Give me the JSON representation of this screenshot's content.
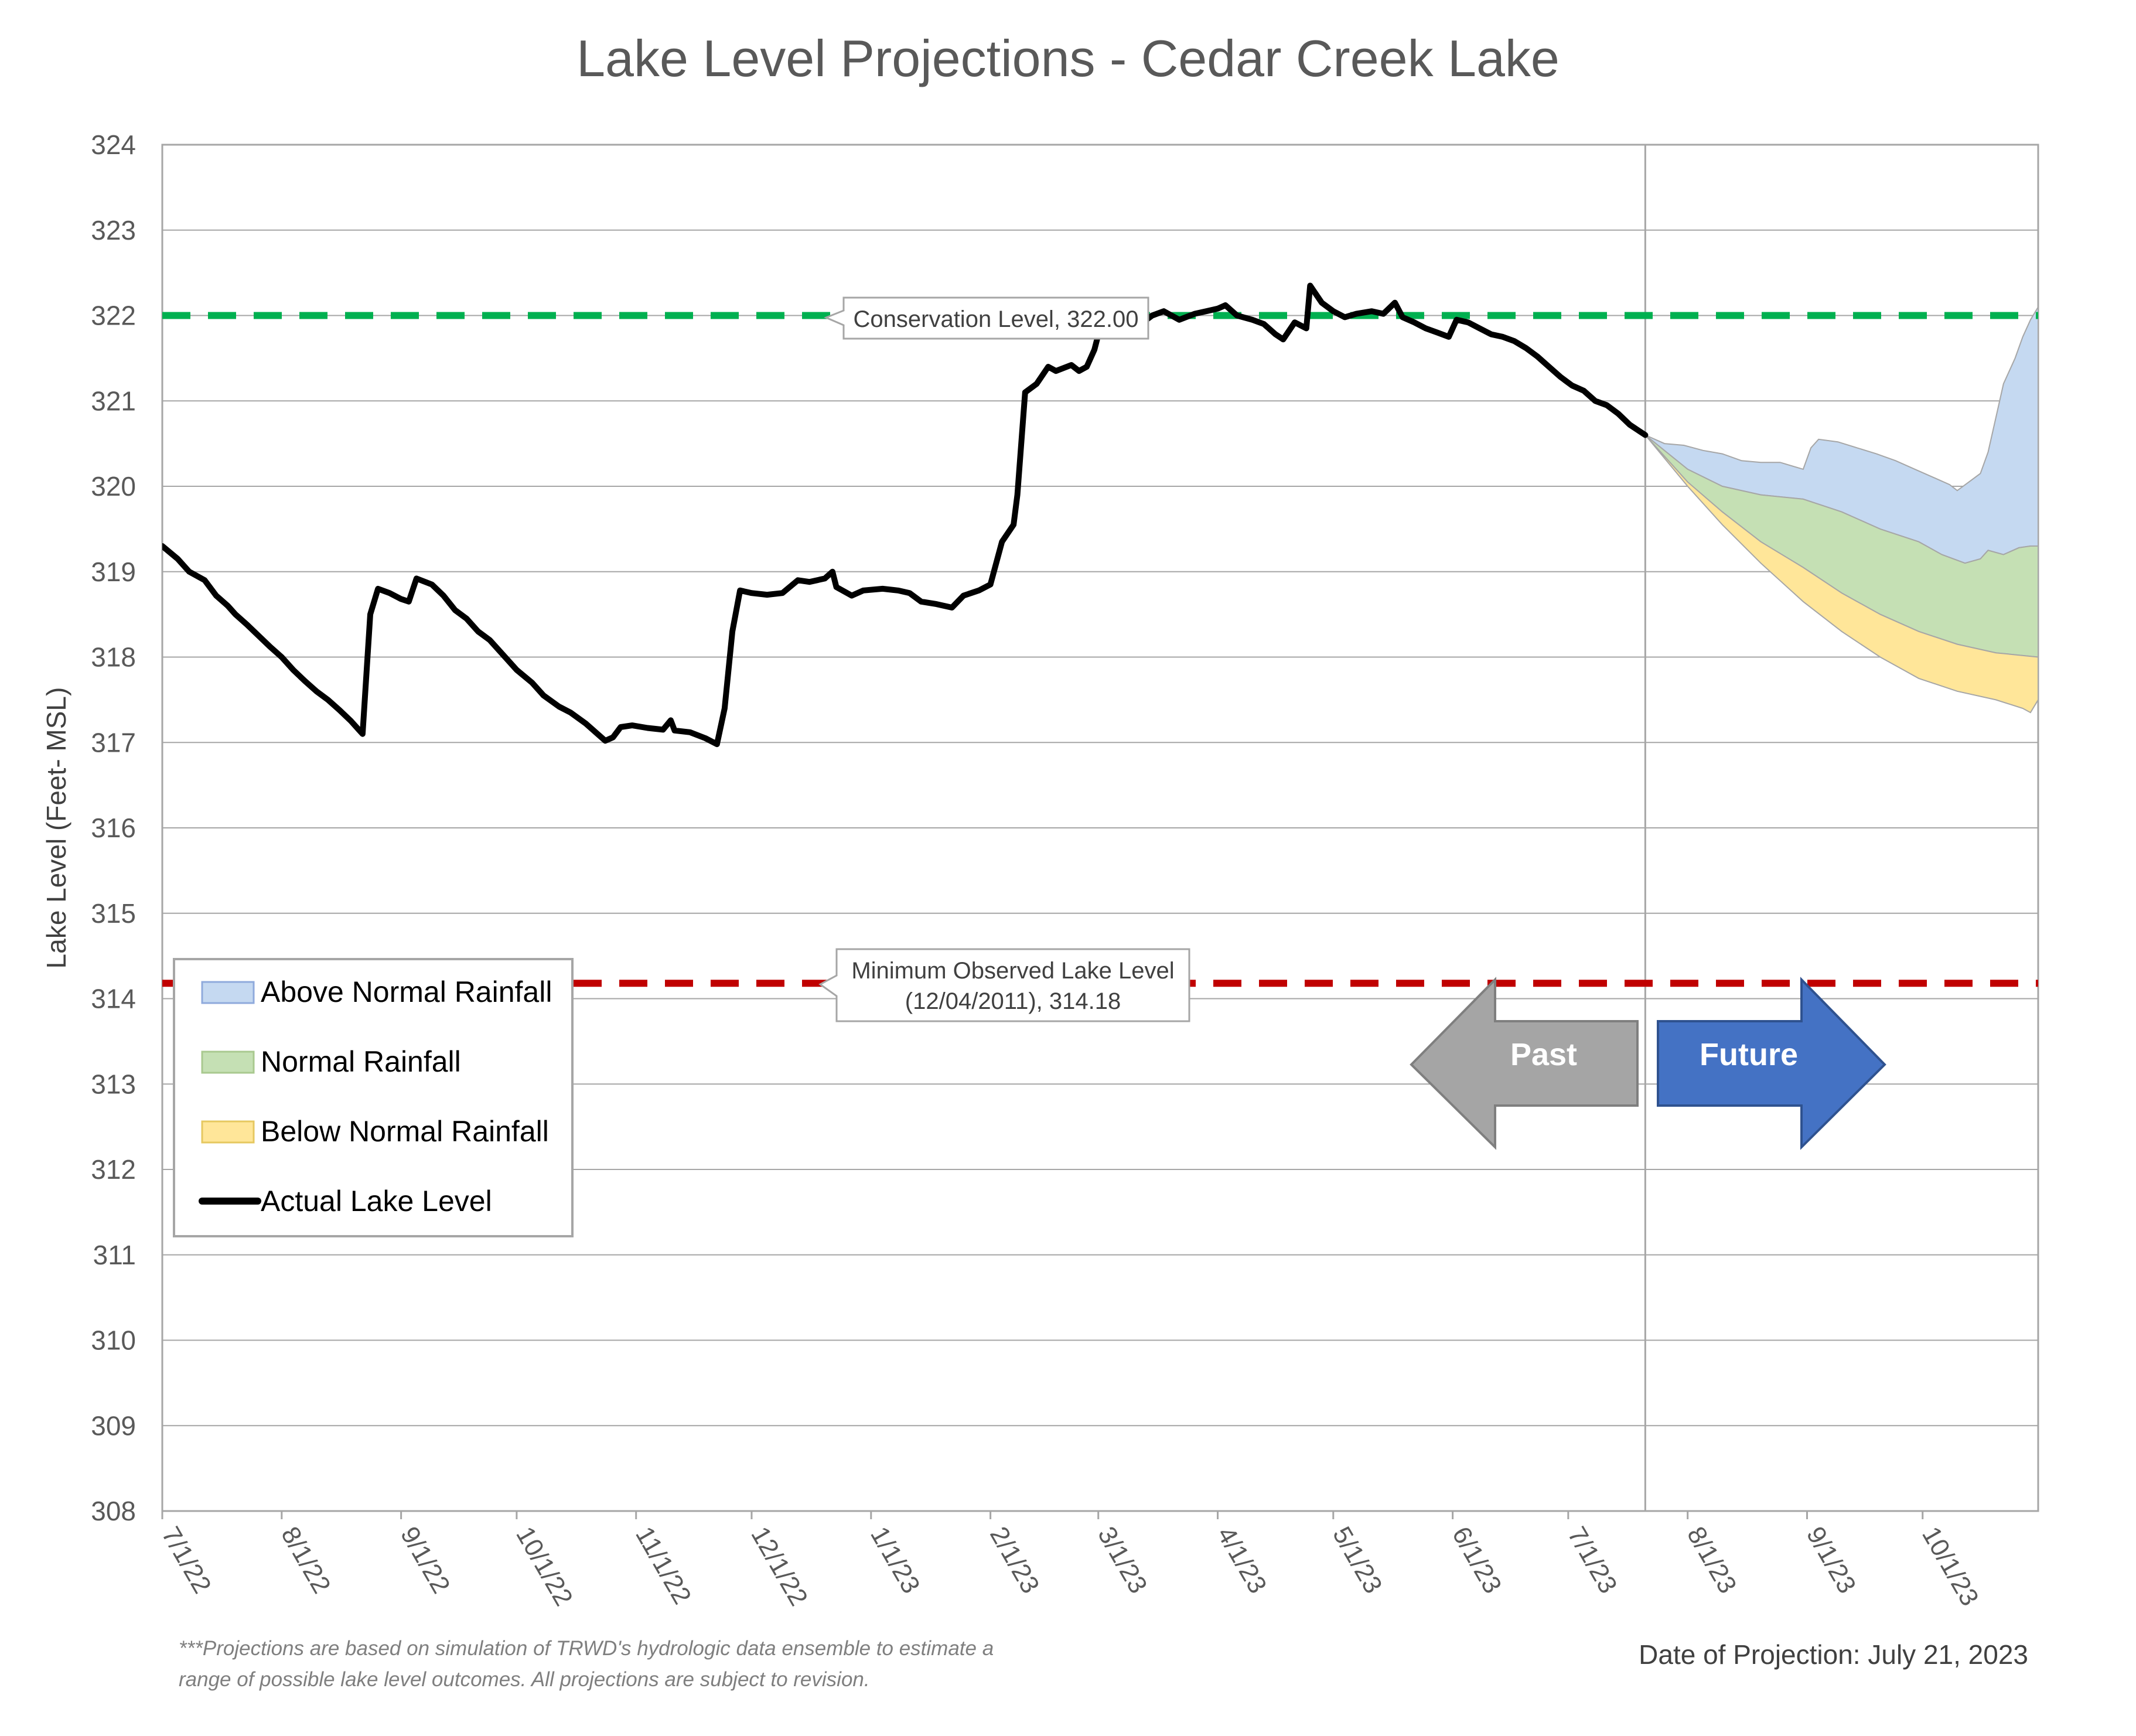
{
  "chart_data": {
    "type": "area",
    "title": "Lake Level Projections - Cedar Creek Lake",
    "ylabel": "Lake Level (Feet- MSL)",
    "xlabel": "",
    "ylim": [
      308,
      324
    ],
    "yticks": [
      308,
      309,
      310,
      311,
      312,
      313,
      314,
      315,
      316,
      317,
      318,
      319,
      320,
      321,
      322,
      323,
      324
    ],
    "xlim": [
      "2022-07-01",
      "2023-10-31"
    ],
    "xticks": [
      {
        "date": "2022-07-01",
        "label": "7/1/22"
      },
      {
        "date": "2022-08-01",
        "label": "8/1/22"
      },
      {
        "date": "2022-09-01",
        "label": "9/1/22"
      },
      {
        "date": "2022-10-01",
        "label": "10/1/22"
      },
      {
        "date": "2022-11-01",
        "label": "11/1/22"
      },
      {
        "date": "2022-12-01",
        "label": "12/1/22"
      },
      {
        "date": "2023-01-01",
        "label": "1/1/23"
      },
      {
        "date": "2023-02-01",
        "label": "2/1/23"
      },
      {
        "date": "2023-03-01",
        "label": "3/1/23"
      },
      {
        "date": "2023-04-01",
        "label": "4/1/23"
      },
      {
        "date": "2023-05-01",
        "label": "5/1/23"
      },
      {
        "date": "2023-06-01",
        "label": "6/1/23"
      },
      {
        "date": "2023-07-01",
        "label": "7/1/23"
      },
      {
        "date": "2023-08-01",
        "label": "8/1/23"
      },
      {
        "date": "2023-09-01",
        "label": "9/1/23"
      },
      {
        "date": "2023-10-01",
        "label": "10/1/23"
      }
    ],
    "grid": true,
    "legend": {
      "position": "bottom-left",
      "entries": [
        {
          "label": "Above Normal Rainfall",
          "color": "#c5d9f1",
          "border": "#8faadc",
          "kind": "area"
        },
        {
          "label": "Normal Rainfall",
          "color": "#c5e0b4",
          "border": "#a9c98f",
          "kind": "area"
        },
        {
          "label": "Below Normal Rainfall",
          "color": "#ffe699",
          "border": "#e6c860",
          "kind": "area"
        },
        {
          "label": "Actual Lake Level",
          "color": "#000000",
          "kind": "line"
        }
      ]
    },
    "reference_lines": [
      {
        "label": "Conservation Level, 322.00",
        "value": 322.0,
        "color": "#00b050"
      },
      {
        "label": "Minimum Observed Lake Level",
        "label2": "(12/04/2011), 314.18",
        "value": 314.18,
        "color": "#c00000"
      }
    ],
    "projection_start": "2023-07-21",
    "series": [
      {
        "name": "Actual Lake Level",
        "color": "#000000",
        "points": [
          [
            "2022-07-01",
            319.3
          ],
          [
            "2022-07-05",
            319.15
          ],
          [
            "2022-07-08",
            319.0
          ],
          [
            "2022-07-12",
            318.9
          ],
          [
            "2022-07-15",
            318.72
          ],
          [
            "2022-07-18",
            318.6
          ],
          [
            "2022-07-20",
            318.5
          ],
          [
            "2022-07-23",
            318.38
          ],
          [
            "2022-07-26",
            318.25
          ],
          [
            "2022-07-29",
            318.12
          ],
          [
            "2022-08-01",
            318.0
          ],
          [
            "2022-08-04",
            317.85
          ],
          [
            "2022-08-07",
            317.72
          ],
          [
            "2022-08-10",
            317.6
          ],
          [
            "2022-08-13",
            317.5
          ],
          [
            "2022-08-16",
            317.38
          ],
          [
            "2022-08-19",
            317.25
          ],
          [
            "2022-08-21",
            317.15
          ],
          [
            "2022-08-22",
            317.1
          ],
          [
            "2022-08-24",
            318.5
          ],
          [
            "2022-08-26",
            318.8
          ],
          [
            "2022-08-29",
            318.75
          ],
          [
            "2022-09-01",
            318.68
          ],
          [
            "2022-09-03",
            318.65
          ],
          [
            "2022-09-05",
            318.92
          ],
          [
            "2022-09-09",
            318.85
          ],
          [
            "2022-09-12",
            318.72
          ],
          [
            "2022-09-15",
            318.55
          ],
          [
            "2022-09-18",
            318.45
          ],
          [
            "2022-09-21",
            318.3
          ],
          [
            "2022-09-24",
            318.2
          ],
          [
            "2022-09-28",
            318.0
          ],
          [
            "2022-10-01",
            317.85
          ],
          [
            "2022-10-05",
            317.7
          ],
          [
            "2022-10-08",
            317.55
          ],
          [
            "2022-10-12",
            317.42
          ],
          [
            "2022-10-15",
            317.35
          ],
          [
            "2022-10-19",
            317.22
          ],
          [
            "2022-10-22",
            317.1
          ],
          [
            "2022-10-24",
            317.02
          ],
          [
            "2022-10-26",
            317.06
          ],
          [
            "2022-10-28",
            317.18
          ],
          [
            "2022-10-31",
            317.2
          ],
          [
            "2022-11-04",
            317.17
          ],
          [
            "2022-11-08",
            317.15
          ],
          [
            "2022-11-10",
            317.26
          ],
          [
            "2022-11-11",
            317.14
          ],
          [
            "2022-11-15",
            317.12
          ],
          [
            "2022-11-19",
            317.05
          ],
          [
            "2022-11-22",
            316.98
          ],
          [
            "2022-11-24",
            317.4
          ],
          [
            "2022-11-26",
            318.3
          ],
          [
            "2022-11-28",
            318.78
          ],
          [
            "2022-12-01",
            318.75
          ],
          [
            "2022-12-05",
            318.73
          ],
          [
            "2022-12-09",
            318.75
          ],
          [
            "2022-12-13",
            318.9
          ],
          [
            "2022-12-16",
            318.88
          ],
          [
            "2022-12-20",
            318.92
          ],
          [
            "2022-12-22",
            319.0
          ],
          [
            "2022-12-23",
            318.82
          ],
          [
            "2022-12-27",
            318.72
          ],
          [
            "2022-12-30",
            318.78
          ],
          [
            "2023-01-04",
            318.8
          ],
          [
            "2023-01-08",
            318.78
          ],
          [
            "2023-01-11",
            318.75
          ],
          [
            "2023-01-14",
            318.65
          ],
          [
            "2023-01-18",
            318.62
          ],
          [
            "2023-01-22",
            318.58
          ],
          [
            "2023-01-25",
            318.72
          ],
          [
            "2023-01-29",
            318.78
          ],
          [
            "2023-02-01",
            318.85
          ],
          [
            "2023-02-04",
            319.35
          ],
          [
            "2023-02-07",
            319.55
          ],
          [
            "2023-02-08",
            319.9
          ],
          [
            "2023-02-09",
            320.5
          ],
          [
            "2023-02-10",
            321.1
          ],
          [
            "2023-02-13",
            321.2
          ],
          [
            "2023-02-16",
            321.4
          ],
          [
            "2023-02-18",
            321.35
          ],
          [
            "2023-02-22",
            321.42
          ],
          [
            "2023-02-24",
            321.35
          ],
          [
            "2023-02-26",
            321.4
          ],
          [
            "2023-02-28",
            321.6
          ],
          [
            "2023-03-02",
            321.95
          ],
          [
            "2023-03-05",
            322.05
          ],
          [
            "2023-03-08",
            322.0
          ],
          [
            "2023-03-12",
            321.9
          ],
          [
            "2023-03-15",
            322.0
          ],
          [
            "2023-03-18",
            322.05
          ],
          [
            "2023-03-22",
            321.95
          ],
          [
            "2023-03-26",
            322.02
          ],
          [
            "2023-03-29",
            322.05
          ],
          [
            "2023-04-01",
            322.08
          ],
          [
            "2023-04-03",
            322.12
          ],
          [
            "2023-04-06",
            322.0
          ],
          [
            "2023-04-10",
            321.95
          ],
          [
            "2023-04-13",
            321.9
          ],
          [
            "2023-04-16",
            321.78
          ],
          [
            "2023-04-18",
            321.72
          ],
          [
            "2023-04-21",
            321.92
          ],
          [
            "2023-04-24",
            321.85
          ],
          [
            "2023-04-25",
            322.35
          ],
          [
            "2023-04-28",
            322.15
          ],
          [
            "2023-05-01",
            322.05
          ],
          [
            "2023-05-04",
            321.98
          ],
          [
            "2023-05-07",
            322.02
          ],
          [
            "2023-05-11",
            322.05
          ],
          [
            "2023-05-14",
            322.02
          ],
          [
            "2023-05-17",
            322.15
          ],
          [
            "2023-05-19",
            321.98
          ],
          [
            "2023-05-22",
            321.92
          ],
          [
            "2023-05-25",
            321.85
          ],
          [
            "2023-05-28",
            321.8
          ],
          [
            "2023-05-31",
            321.75
          ],
          [
            "2023-06-02",
            321.95
          ],
          [
            "2023-06-05",
            321.92
          ],
          [
            "2023-06-08",
            321.85
          ],
          [
            "2023-06-11",
            321.78
          ],
          [
            "2023-06-14",
            321.75
          ],
          [
            "2023-06-17",
            321.7
          ],
          [
            "2023-06-20",
            321.62
          ],
          [
            "2023-06-23",
            321.52
          ],
          [
            "2023-06-26",
            321.4
          ],
          [
            "2023-06-29",
            321.28
          ],
          [
            "2023-07-02",
            321.18
          ],
          [
            "2023-07-05",
            321.12
          ],
          [
            "2023-07-08",
            321.0
          ],
          [
            "2023-07-11",
            320.95
          ],
          [
            "2023-07-14",
            320.85
          ],
          [
            "2023-07-17",
            320.72
          ],
          [
            "2023-07-21",
            320.6
          ]
        ]
      },
      {
        "name": "Above Normal Rainfall",
        "color": "#c5d9f1",
        "upper": [
          [
            "2023-07-21",
            320.6
          ],
          [
            "2023-07-26",
            320.5
          ],
          [
            "2023-07-31",
            320.48
          ],
          [
            "2023-08-05",
            320.42
          ],
          [
            "2023-08-10",
            320.38
          ],
          [
            "2023-08-15",
            320.3
          ],
          [
            "2023-08-20",
            320.28
          ],
          [
            "2023-08-25",
            320.28
          ],
          [
            "2023-08-31",
            320.2
          ],
          [
            "2023-09-02",
            320.45
          ],
          [
            "2023-09-04",
            320.55
          ],
          [
            "2023-09-09",
            320.52
          ],
          [
            "2023-09-14",
            320.45
          ],
          [
            "2023-09-19",
            320.38
          ],
          [
            "2023-09-24",
            320.3
          ],
          [
            "2023-09-29",
            320.2
          ],
          [
            "2023-10-04",
            320.1
          ],
          [
            "2023-10-08",
            320.02
          ],
          [
            "2023-10-10",
            319.95
          ],
          [
            "2023-10-13",
            320.05
          ],
          [
            "2023-10-16",
            320.15
          ],
          [
            "2023-10-18",
            320.4
          ],
          [
            "2023-10-20",
            320.8
          ],
          [
            "2023-10-22",
            321.2
          ],
          [
            "2023-10-25",
            321.5
          ],
          [
            "2023-10-27",
            321.75
          ],
          [
            "2023-10-29",
            321.95
          ],
          [
            "2023-10-31",
            322.1
          ]
        ],
        "lower": [
          [
            "2023-07-21",
            320.6
          ],
          [
            "2023-08-01",
            320.2
          ],
          [
            "2023-08-10",
            320.0
          ],
          [
            "2023-08-20",
            319.9
          ],
          [
            "2023-08-31",
            319.85
          ],
          [
            "2023-09-10",
            319.7
          ],
          [
            "2023-09-20",
            319.5
          ],
          [
            "2023-09-30",
            319.35
          ],
          [
            "2023-10-06",
            319.2
          ],
          [
            "2023-10-12",
            319.1
          ],
          [
            "2023-10-16",
            319.15
          ],
          [
            "2023-10-18",
            319.25
          ],
          [
            "2023-10-22",
            319.2
          ],
          [
            "2023-10-26",
            319.28
          ],
          [
            "2023-10-29",
            319.3
          ],
          [
            "2023-10-31",
            319.3
          ]
        ]
      },
      {
        "name": "Normal Rainfall",
        "color": "#c5e0b4",
        "upper": [
          [
            "2023-07-21",
            320.6
          ],
          [
            "2023-08-01",
            320.2
          ],
          [
            "2023-08-10",
            320.0
          ],
          [
            "2023-08-20",
            319.9
          ],
          [
            "2023-08-31",
            319.85
          ],
          [
            "2023-09-10",
            319.7
          ],
          [
            "2023-09-20",
            319.5
          ],
          [
            "2023-09-30",
            319.35
          ],
          [
            "2023-10-06",
            319.2
          ],
          [
            "2023-10-12",
            319.1
          ],
          [
            "2023-10-16",
            319.15
          ],
          [
            "2023-10-18",
            319.25
          ],
          [
            "2023-10-22",
            319.2
          ],
          [
            "2023-10-26",
            319.28
          ],
          [
            "2023-10-29",
            319.3
          ],
          [
            "2023-10-31",
            319.3
          ]
        ],
        "lower": [
          [
            "2023-07-21",
            320.6
          ],
          [
            "2023-08-01",
            320.05
          ],
          [
            "2023-08-10",
            319.7
          ],
          [
            "2023-08-20",
            319.35
          ],
          [
            "2023-08-31",
            319.05
          ],
          [
            "2023-09-10",
            318.75
          ],
          [
            "2023-09-20",
            318.5
          ],
          [
            "2023-09-30",
            318.3
          ],
          [
            "2023-10-10",
            318.15
          ],
          [
            "2023-10-20",
            318.05
          ],
          [
            "2023-10-31",
            318.0
          ]
        ]
      },
      {
        "name": "Below Normal Rainfall",
        "color": "#ffe699",
        "upper": [
          [
            "2023-07-21",
            320.6
          ],
          [
            "2023-08-01",
            320.05
          ],
          [
            "2023-08-10",
            319.7
          ],
          [
            "2023-08-20",
            319.35
          ],
          [
            "2023-08-31",
            319.05
          ],
          [
            "2023-09-10",
            318.75
          ],
          [
            "2023-09-20",
            318.5
          ],
          [
            "2023-09-30",
            318.3
          ],
          [
            "2023-10-10",
            318.15
          ],
          [
            "2023-10-20",
            318.05
          ],
          [
            "2023-10-31",
            318.0
          ]
        ],
        "lower": [
          [
            "2023-07-21",
            320.6
          ],
          [
            "2023-08-01",
            320.0
          ],
          [
            "2023-08-10",
            319.55
          ],
          [
            "2023-08-20",
            319.1
          ],
          [
            "2023-08-31",
            318.65
          ],
          [
            "2023-09-10",
            318.3
          ],
          [
            "2023-09-20",
            318.0
          ],
          [
            "2023-09-30",
            317.75
          ],
          [
            "2023-10-10",
            317.6
          ],
          [
            "2023-10-20",
            317.5
          ],
          [
            "2023-10-27",
            317.4
          ],
          [
            "2023-10-29",
            317.35
          ],
          [
            "2023-10-31",
            317.5
          ]
        ]
      }
    ],
    "annotations": {
      "past_arrow": {
        "label": "Past",
        "color": "#a5a5a5"
      },
      "future_arrow": {
        "label": "Future",
        "color": "#4472c4"
      },
      "footnote_line1": "***Projections are based on simulation of TRWD's hydrologic data ensemble to estimate a",
      "footnote_line2": "range of possible lake level outcomes.  All projections are subject to revision.",
      "projection_date": "Date of Projection: July 21, 2023"
    }
  }
}
